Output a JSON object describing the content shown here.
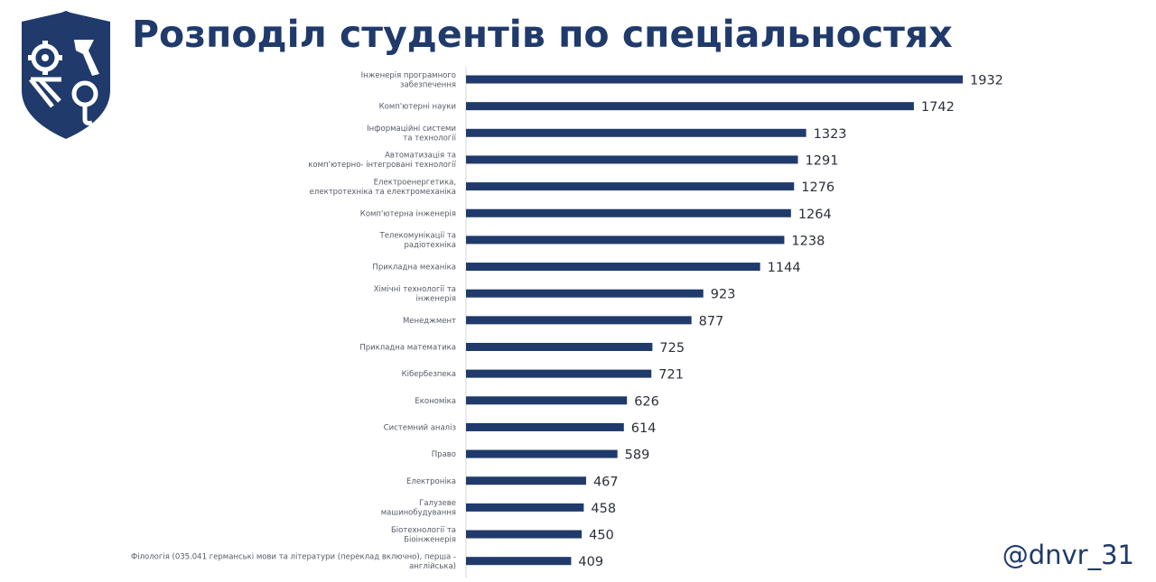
{
  "header": {
    "title": "Розподіл студентів по спеціальностях"
  },
  "footer": {
    "handle": "@dnvr_31"
  },
  "colors": {
    "bar": "#1f3a6b",
    "title": "#1f3a6b",
    "logo": "#1f3a6b",
    "axis": "#d4d7de"
  },
  "logo": {
    "icon": "university-crest-icon"
  },
  "chart_data": {
    "type": "bar",
    "orientation": "horizontal",
    "title": "",
    "xlabel": "",
    "ylabel": "",
    "grid": false,
    "legend": "none",
    "xlim": [
      0,
      1932
    ],
    "categories": [
      [
        "Інженерія  програмного",
        "забезпечення"
      ],
      [
        "Комп'ютерні  науки"
      ],
      [
        "Інформаційні   системи",
        "та технології"
      ],
      [
        "Автоматизація   та",
        "комп'ютерно-  інтегровані  технології"
      ],
      [
        "Електроенергетика,",
        "електротехніка  та електромеханіка"
      ],
      [
        "Комп'ютерна  інженерія"
      ],
      [
        "Телекомунікації  та",
        "радіотехніка"
      ],
      [
        "Прикладна  механіка"
      ],
      [
        "Хімічні технології  та",
        "інженерія"
      ],
      [
        "Менеджмент"
      ],
      [
        "Прикладна  математика"
      ],
      [
        "Кібербезпека"
      ],
      [
        "Економіка"
      ],
      [
        "Системний  аналіз"
      ],
      [
        "Право"
      ],
      [
        "Електроніка"
      ],
      [
        "Галузеве",
        "машинобудування"
      ],
      [
        "Біотехнології  та",
        "Біоінженерія"
      ],
      [
        "Філологія  (035.041 германські мови та літератури  (переклад включно),  перша -",
        "англійська)"
      ]
    ],
    "values": [
      1932,
      1742,
      1323,
      1291,
      1276,
      1264,
      1238,
      1144,
      923,
      877,
      725,
      721,
      626,
      614,
      589,
      467,
      458,
      450,
      409
    ]
  }
}
